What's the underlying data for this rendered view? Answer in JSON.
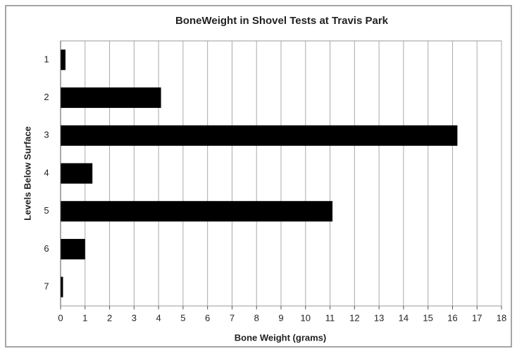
{
  "chart_data": {
    "type": "barh",
    "title": "BoneWeight in Shovel Tests at Travis Park",
    "xlabel": "Bone Weight (grams)",
    "ylabel": "Levels Below Surface",
    "categories": [
      "1",
      "2",
      "3",
      "4",
      "5",
      "6",
      "7"
    ],
    "values": [
      0.2,
      4.1,
      16.2,
      1.3,
      11.1,
      1.0,
      0.1
    ],
    "color": "#000000",
    "xlim": [
      0,
      18
    ],
    "xticks": [
      0,
      1,
      2,
      3,
      4,
      5,
      6,
      7,
      8,
      9,
      10,
      11,
      12,
      13,
      14,
      15,
      16,
      17,
      18
    ],
    "grid": true
  }
}
